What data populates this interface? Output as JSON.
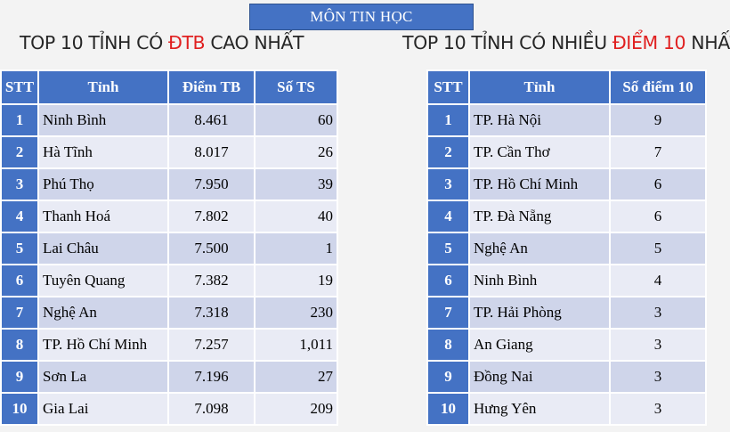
{
  "banner": "MÔN TIN HỌC",
  "left_heading": {
    "pre": "TOP 10 TỈNH CÓ ",
    "highlight": "ĐTB",
    "post": " CAO NHẤT"
  },
  "right_heading": {
    "pre": "TOP 10 TỈNH CÓ NHIỀU ",
    "highlight": "ĐIỂM 10",
    "post": " NHẤT"
  },
  "colors": {
    "header_blue": "#4472c4",
    "row_band_1": "#cfd5ea",
    "row_band_2": "#e9ebf5",
    "highlight_red": "#e02020"
  },
  "left_table": {
    "headers": [
      "STT",
      "Tỉnh",
      "Điểm TB",
      "Số TS"
    ],
    "rows": [
      [
        "1",
        "Ninh Bình",
        "8.461",
        "60"
      ],
      [
        "2",
        "Hà Tĩnh",
        "8.017",
        "26"
      ],
      [
        "3",
        "Phú Thọ",
        "7.950",
        "39"
      ],
      [
        "4",
        "Thanh Hoá",
        "7.802",
        "40"
      ],
      [
        "5",
        "Lai Châu",
        "7.500",
        "1"
      ],
      [
        "6",
        "Tuyên Quang",
        "7.382",
        "19"
      ],
      [
        "7",
        "Nghệ An",
        "7.318",
        "230"
      ],
      [
        "8",
        "TP. Hồ Chí Minh",
        "7.257",
        "1,011"
      ],
      [
        "9",
        "Sơn La",
        "7.196",
        "27"
      ],
      [
        "10",
        "Gia Lai",
        "7.098",
        "209"
      ]
    ]
  },
  "right_table": {
    "headers": [
      "STT",
      "Tỉnh",
      "Số điểm 10"
    ],
    "rows": [
      [
        "1",
        "TP. Hà Nội",
        "9"
      ],
      [
        "2",
        "TP. Cần Thơ",
        "7"
      ],
      [
        "3",
        "TP. Hồ Chí Minh",
        "6"
      ],
      [
        "4",
        "TP. Đà Nẵng",
        "6"
      ],
      [
        "5",
        "Nghệ An",
        "5"
      ],
      [
        "6",
        "Ninh Bình",
        "4"
      ],
      [
        "7",
        "TP. Hải Phòng",
        "3"
      ],
      [
        "8",
        "An Giang",
        "3"
      ],
      [
        "9",
        "Đồng Nai",
        "3"
      ],
      [
        "10",
        "Hưng Yên",
        "3"
      ]
    ]
  }
}
